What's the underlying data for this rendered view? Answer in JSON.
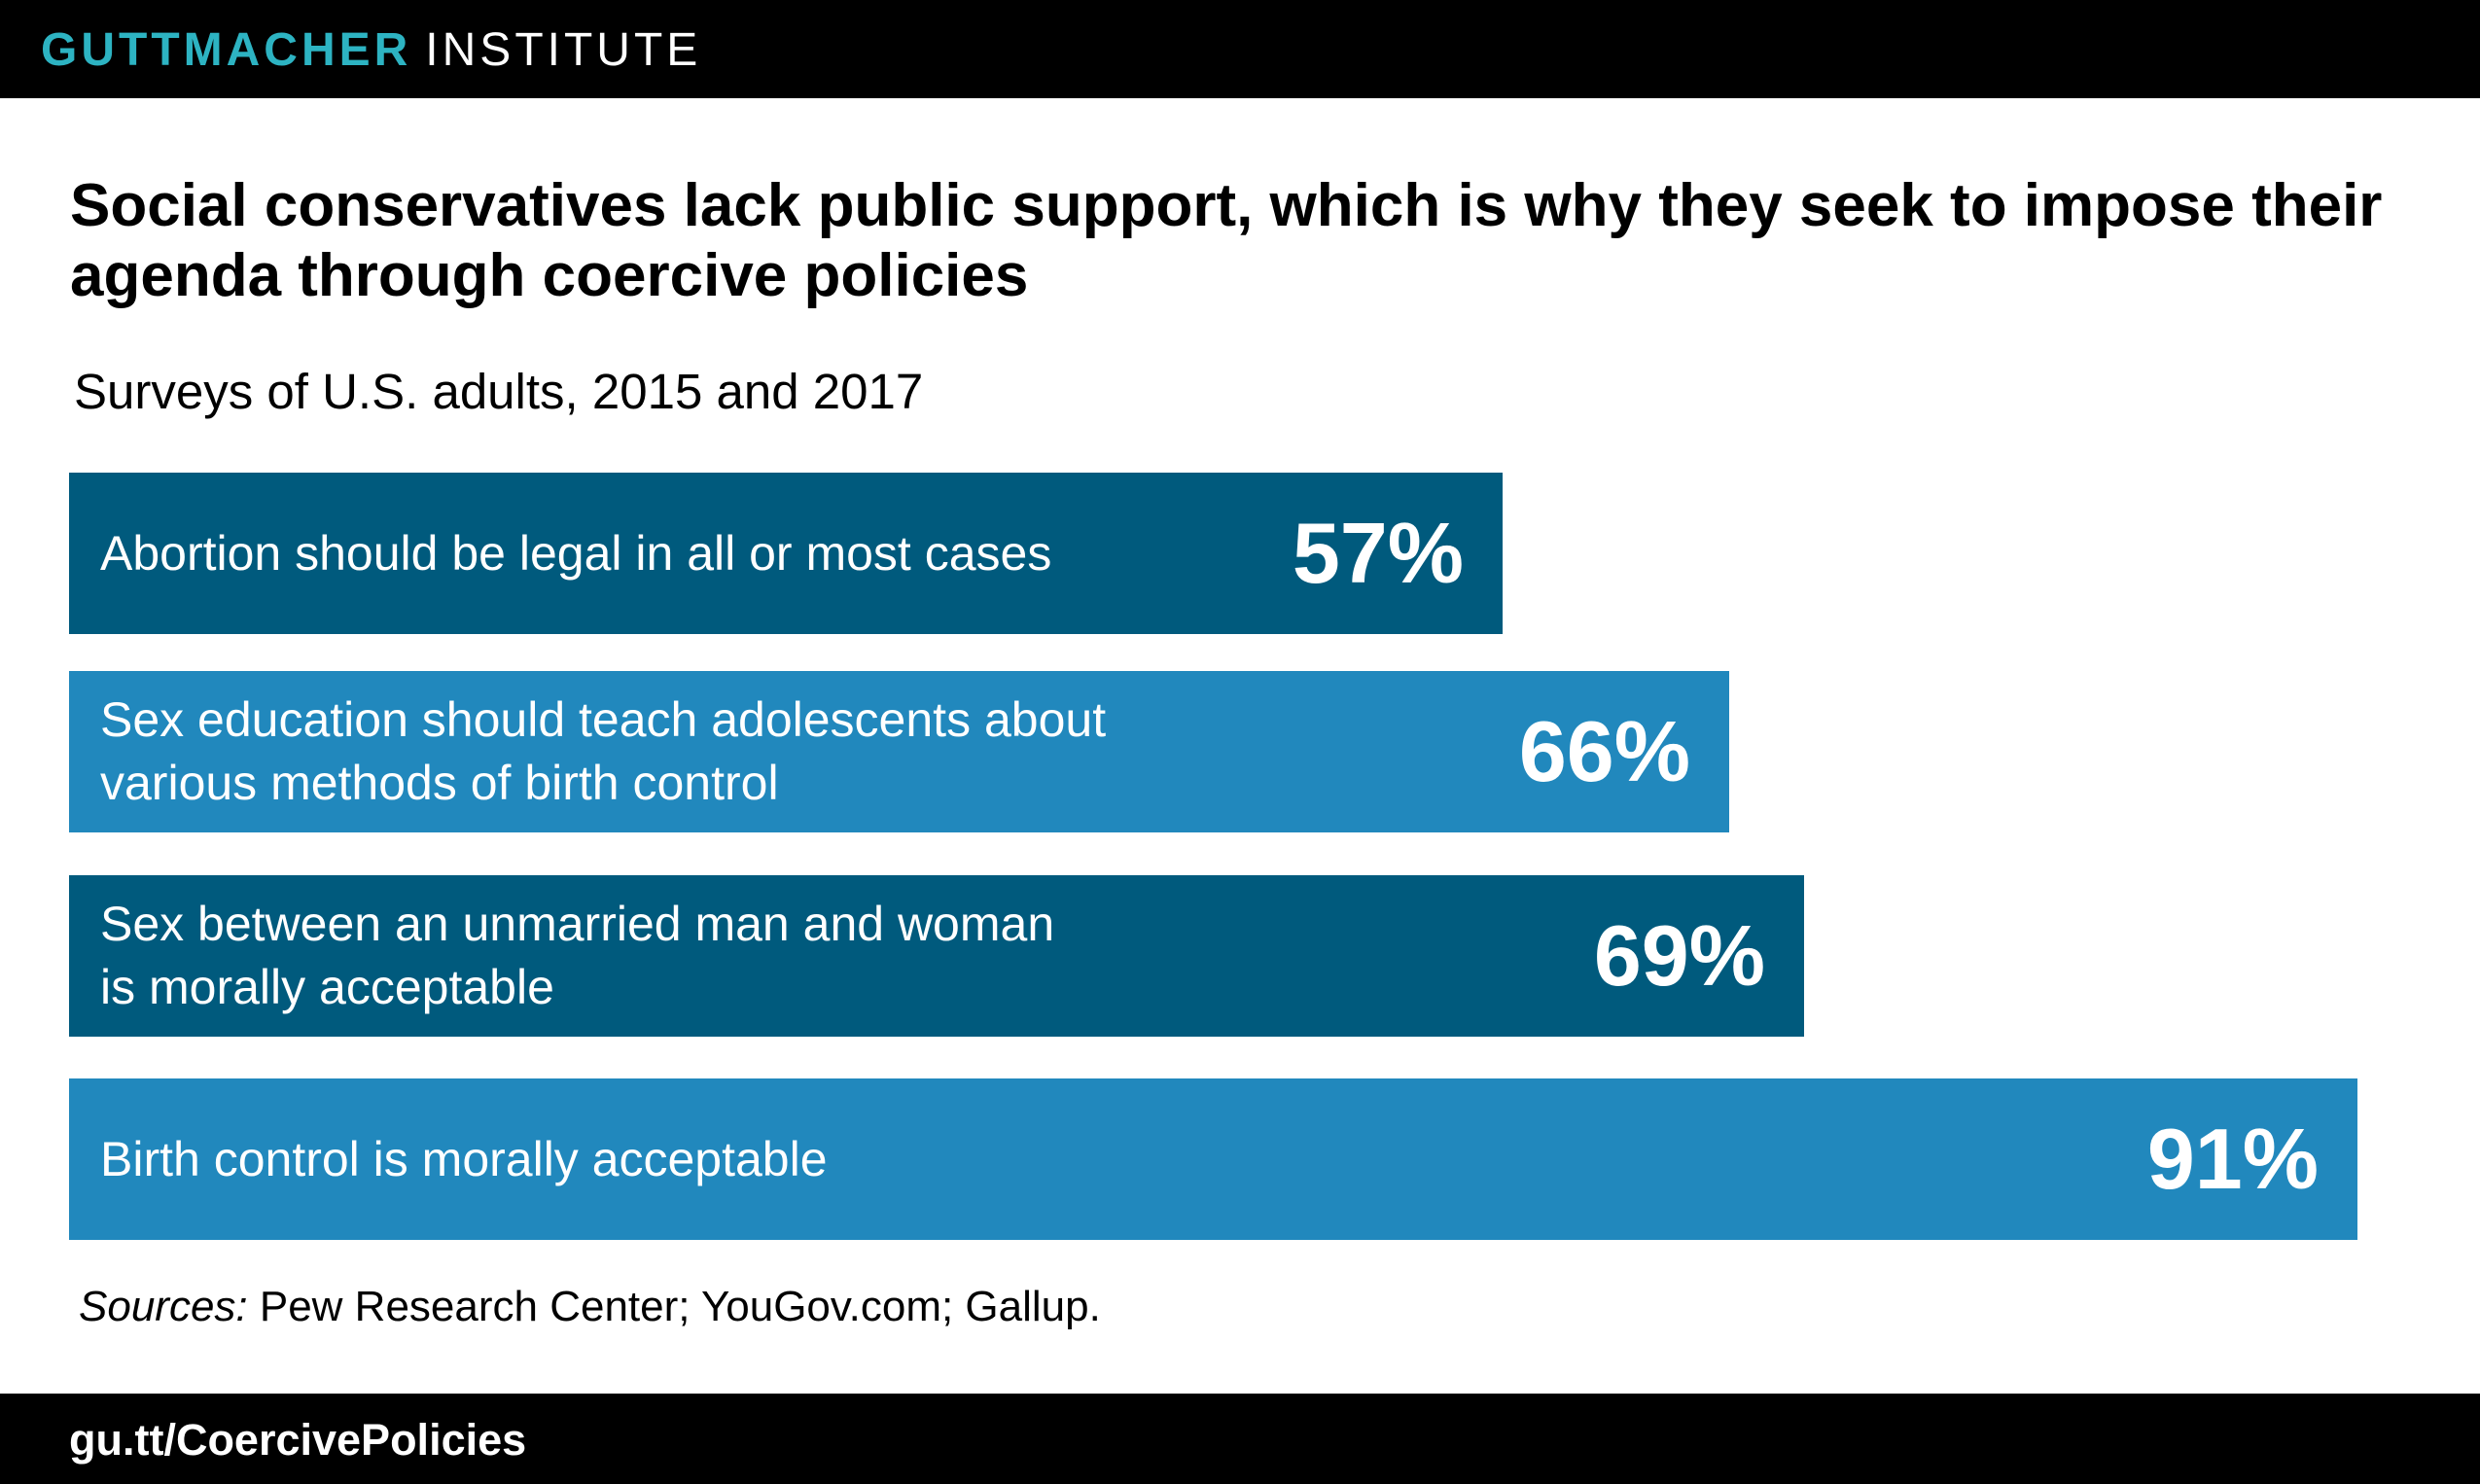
{
  "header": {
    "brand_bold": "GUTTMACHER",
    "brand_light": "INSTITUTE"
  },
  "colors": {
    "dark_bar": "#005a7d",
    "light_bar": "#2188bd",
    "brand_accent": "#2db3c2"
  },
  "chart_data": {
    "type": "bar",
    "orientation": "horizontal",
    "title": "Social conservatives lack public support, which is why they seek to impose their agenda through coercive policies",
    "subtitle": "Surveys of U.S. adults, 2015 and 2017",
    "xlabel": "",
    "ylabel": "",
    "xlim": [
      0,
      100
    ],
    "grid": false,
    "categories": [
      "Abortion should be legal in all or most cases",
      "Sex education should teach adolescents about various methods of birth control",
      "Sex between an unmarried man and woman is morally acceptable",
      "Birth control is morally acceptable"
    ],
    "label_lines": [
      [
        "Abortion should be legal in all or most cases"
      ],
      [
        "Sex education should teach adolescents about",
        "various methods of birth control"
      ],
      [
        "Sex between an unmarried man and woman",
        "is morally acceptable"
      ],
      [
        "Birth control is morally acceptable"
      ]
    ],
    "values": [
      57,
      66,
      69,
      91
    ],
    "value_labels": [
      "57%",
      "66%",
      "69%",
      "91%"
    ],
    "bar_colors": [
      "#005a7d",
      "#2188bd",
      "#005a7d",
      "#2188bd"
    ]
  },
  "footer": {
    "sources_prefix": "Sources:",
    "sources_text": " Pew Research Center; YouGov.com; Gallup.",
    "url": "gu.tt/CoercivePolicies"
  }
}
